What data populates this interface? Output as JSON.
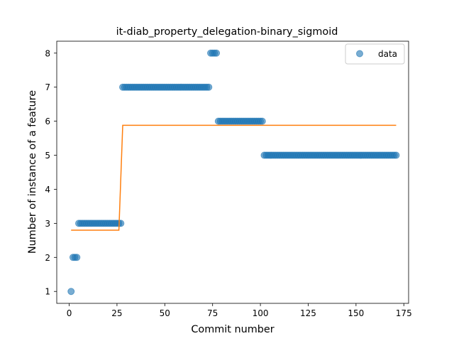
{
  "chart_data": {
    "type": "scatter",
    "title": "it-diab_property_delegation-binary_sigmoid",
    "xlabel": "Commit number",
    "ylabel": "Number of instance of a feature",
    "xlim": [
      -6.5,
      177.5
    ],
    "ylim": [
      0.65,
      8.35
    ],
    "xticks": [
      0,
      25,
      50,
      75,
      100,
      125,
      150,
      175
    ],
    "yticks": [
      1,
      2,
      3,
      4,
      5,
      6,
      7,
      8
    ],
    "legend": {
      "position": "top-right",
      "entries": [
        "data"
      ]
    },
    "colors": {
      "data": "#1f77b4",
      "fit": "#ff7f0e"
    },
    "series": [
      {
        "name": "data",
        "kind": "points",
        "segments": [
          {
            "x_start": 1,
            "x_end": 1,
            "y": 1
          },
          {
            "x_start": 2,
            "x_end": 4,
            "y": 2
          },
          {
            "x_start": 5,
            "x_end": 27,
            "y": 3
          },
          {
            "x_start": 28,
            "x_end": 73,
            "y": 7
          },
          {
            "x_start": 74,
            "x_end": 77,
            "y": 8
          },
          {
            "x_start": 78,
            "x_end": 101,
            "y": 6
          },
          {
            "x_start": 102,
            "x_end": 171,
            "y": 5
          }
        ]
      },
      {
        "kind": "line",
        "points": [
          {
            "x": 1,
            "y": 2.8
          },
          {
            "x": 26,
            "y": 2.8
          },
          {
            "x": 28,
            "y": 5.88
          },
          {
            "x": 171,
            "y": 5.88
          }
        ]
      }
    ]
  }
}
